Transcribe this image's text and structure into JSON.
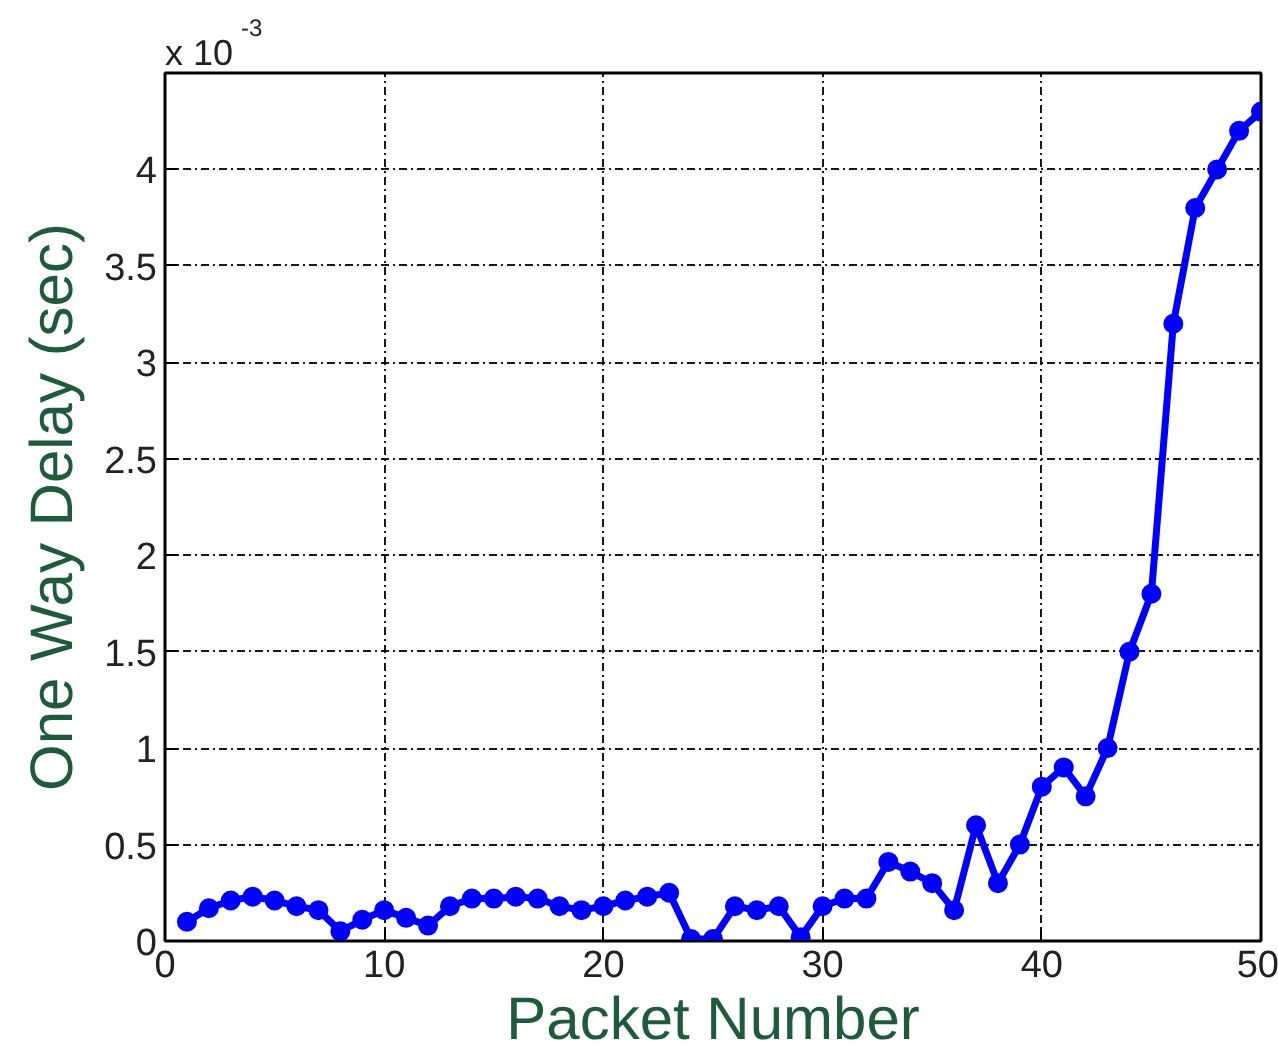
{
  "chart_data": {
    "type": "line",
    "xlabel": "Packet Number",
    "ylabel": "One Way Delay (sec)",
    "annotations": [
      "x 10$^{-3}$"
    ],
    "x": [
      1,
      2,
      3,
      4,
      5,
      6,
      7,
      8,
      9,
      10,
      11,
      12,
      13,
      14,
      15,
      16,
      17,
      18,
      19,
      20,
      21,
      22,
      23,
      24,
      25,
      26,
      27,
      28,
      29,
      30,
      31,
      32,
      33,
      34,
      35,
      36,
      37,
      38,
      39,
      40,
      41,
      42,
      43,
      44,
      45,
      46,
      47,
      48,
      49,
      50
    ],
    "series": [
      {
        "color": "#0000ff",
        "values": [
          0.1,
          0.17,
          0.21,
          0.23,
          0.21,
          0.18,
          0.16,
          0.05,
          0.11,
          0.16,
          0.12,
          0.08,
          0.18,
          0.22,
          0.22,
          0.23,
          0.22,
          0.18,
          0.16,
          0.18,
          0.21,
          0.23,
          0.25,
          0.01,
          0.01,
          0.18,
          0.16,
          0.18,
          0.02,
          0.18,
          0.22,
          0.22,
          0.41,
          0.36,
          0.3,
          0.16,
          0.6,
          0.3,
          0.5,
          0.8,
          0.9,
          0.75,
          1.0,
          1.5,
          1.8,
          3.2,
          3.8,
          4.0,
          4.2,
          4.3
        ]
      }
    ],
    "xlim": [
      0,
      50
    ],
    "xticks": [
      0,
      10,
      20,
      30,
      40,
      50
    ],
    "ylim": [
      0,
      4.5
    ],
    "yticks": [
      0,
      0.5,
      1,
      1.5,
      2,
      2.5,
      3,
      3.5,
      4
    ],
    "grid": true,
    "marker": "circle",
    "line_style": "solid"
  }
}
